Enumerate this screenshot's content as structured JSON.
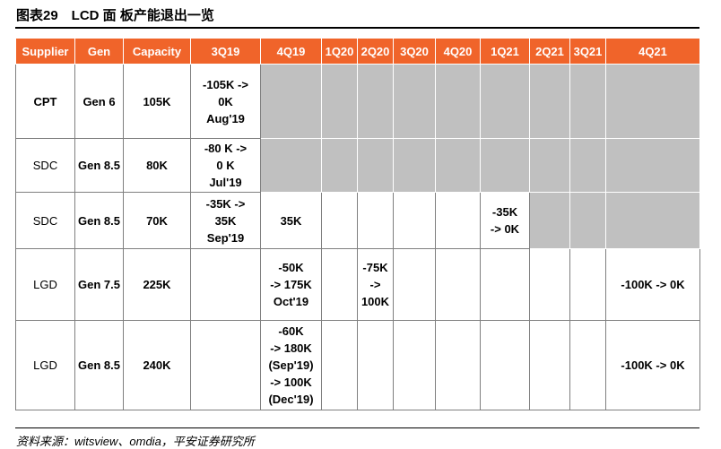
{
  "header": {
    "title": "图表29　LCD 面 板产能退出一览"
  },
  "table": {
    "columns": [
      "Supplier",
      "Gen",
      "Capacity",
      "3Q19",
      "4Q19",
      "1Q20",
      "2Q20",
      "3Q20",
      "4Q20",
      "1Q21",
      "2Q21",
      "3Q21",
      "4Q21"
    ],
    "rows": [
      [
        "CPT",
        "Gen 6",
        "105K",
        "-105K ->\n0K\nAug'19",
        "",
        "",
        "",
        "",
        "",
        "",
        "",
        "",
        ""
      ],
      [
        "SDC",
        "Gen 8.5",
        "80K",
        "-80 K ->\n0 K\nJul'19",
        "",
        "",
        "",
        "",
        "",
        "",
        "",
        "",
        ""
      ],
      [
        "SDC",
        "Gen 8.5",
        "70K",
        "-35K ->\n35K\nSep'19",
        "35K",
        "",
        "",
        "",
        "",
        "-35K\n-> 0K",
        "",
        "",
        ""
      ],
      [
        "LGD",
        "Gen 7.5",
        "225K",
        "",
        "-50K\n-> 175K\nOct'19",
        "",
        "-75K\n->\n100K",
        "",
        "",
        "",
        "",
        "",
        "-100K -> 0K"
      ],
      [
        "LGD",
        "Gen 8.5",
        "240K",
        "",
        "-60K\n-> 180K\n(Sep'19)\n-> 100K\n(Dec'19)",
        "",
        "",
        "",
        "",
        "",
        "",
        "",
        "-100K -> 0K"
      ]
    ]
  },
  "footer": {
    "source": "资料来源：witsview、omdia，平安证券研究所"
  }
}
